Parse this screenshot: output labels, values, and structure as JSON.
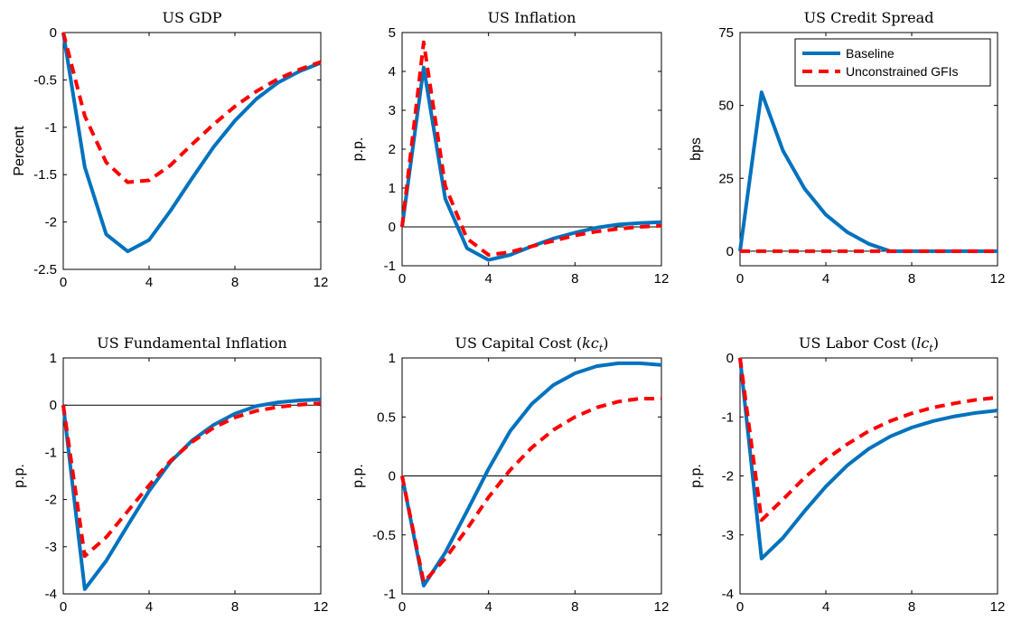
{
  "colors": {
    "baseline": "#0072BD",
    "unconstrained": "#FF0000",
    "axis": "#000000"
  },
  "legend": {
    "placement": "top-right",
    "entries": [
      {
        "label": "Baseline",
        "style": "solid",
        "color": "#0072BD"
      },
      {
        "label": "Unconstrained GFIs",
        "style": "dashed",
        "color": "#FF0000"
      }
    ]
  },
  "chart_data": [
    {
      "type": "line",
      "title": "US GDP",
      "title_main": "US GDP",
      "title_math": "",
      "ylabel": "Percent",
      "xlim": [
        0,
        12
      ],
      "ylim": [
        -2.5,
        0
      ],
      "xticks": [
        0,
        4,
        8,
        12
      ],
      "yticks": [
        -2.5,
        -2,
        -1.5,
        -1,
        -0.5,
        0
      ],
      "ytick_labels": [
        "-2.5",
        "-2",
        "-1.5",
        "-1",
        "-0.5",
        "0"
      ],
      "zero_line": false,
      "legend": false,
      "x": [
        0,
        1,
        2,
        3,
        4,
        5,
        6,
        7,
        8,
        9,
        10,
        11,
        12
      ],
      "series": [
        {
          "name": "Baseline",
          "values": [
            0,
            -1.42,
            -2.13,
            -2.31,
            -2.19,
            -1.88,
            -1.54,
            -1.21,
            -0.93,
            -0.7,
            -0.53,
            -0.41,
            -0.32
          ]
        },
        {
          "name": "Unconstrained GFIs",
          "values": [
            0,
            -0.88,
            -1.37,
            -1.58,
            -1.56,
            -1.4,
            -1.18,
            -0.97,
            -0.78,
            -0.62,
            -0.49,
            -0.39,
            -0.31
          ]
        }
      ]
    },
    {
      "type": "line",
      "title": "US Inflation",
      "title_main": "US Inflation",
      "title_math": "",
      "ylabel": "p.p.",
      "xlim": [
        0,
        12
      ],
      "ylim": [
        -1,
        5
      ],
      "xticks": [
        0,
        4,
        8,
        12
      ],
      "yticks": [
        -1,
        0,
        1,
        2,
        3,
        4,
        5
      ],
      "ytick_labels": [
        "-1",
        "0",
        "1",
        "2",
        "3",
        "4",
        "5"
      ],
      "zero_line": true,
      "legend": false,
      "x": [
        0,
        1,
        2,
        3,
        4,
        5,
        6,
        7,
        8,
        9,
        10,
        11,
        12
      ],
      "series": [
        {
          "name": "Baseline",
          "values": [
            0,
            4.1,
            0.72,
            -0.55,
            -0.85,
            -0.72,
            -0.5,
            -0.3,
            -0.15,
            -0.02,
            0.06,
            0.1,
            0.12
          ]
        },
        {
          "name": "Unconstrained GFIs",
          "values": [
            0,
            4.75,
            1.05,
            -0.3,
            -0.72,
            -0.65,
            -0.5,
            -0.36,
            -0.22,
            -0.12,
            -0.05,
            0.0,
            0.03
          ]
        }
      ]
    },
    {
      "type": "line",
      "title": "US Credit Spread",
      "title_main": "US Credit Spread",
      "title_math": "",
      "ylabel": "bps",
      "xlim": [
        0,
        12
      ],
      "ylim": [
        -5,
        75
      ],
      "xticks": [
        0,
        4,
        8,
        12
      ],
      "yticks": [
        0,
        25,
        50,
        75
      ],
      "ytick_labels": [
        "0",
        "25",
        "50",
        "75"
      ],
      "zero_line": true,
      "legend": true,
      "x": [
        0,
        1,
        2,
        3,
        4,
        5,
        6,
        7,
        8,
        9,
        10,
        11,
        12
      ],
      "series": [
        {
          "name": "Baseline",
          "values": [
            0,
            54.5,
            34.5,
            21.5,
            12.5,
            6.5,
            2.5,
            0,
            0,
            0,
            0,
            0,
            0
          ]
        },
        {
          "name": "Unconstrained GFIs",
          "values": [
            0,
            0,
            0,
            0,
            0,
            0,
            0,
            0,
            0,
            0,
            0,
            0,
            0
          ]
        }
      ]
    },
    {
      "type": "line",
      "title": "US Fundamental Inflation",
      "title_main": "US Fundamental Inflation",
      "title_math": "",
      "ylabel": "p.p.",
      "xlim": [
        0,
        12
      ],
      "ylim": [
        -4,
        1
      ],
      "xticks": [
        0,
        4,
        8,
        12
      ],
      "yticks": [
        -4,
        -3,
        -2,
        -1,
        0,
        1
      ],
      "ytick_labels": [
        "-4",
        "-3",
        "-2",
        "-1",
        "0",
        "1"
      ],
      "zero_line": true,
      "legend": false,
      "x": [
        0,
        1,
        2,
        3,
        4,
        5,
        6,
        7,
        8,
        9,
        10,
        11,
        12
      ],
      "series": [
        {
          "name": "Baseline",
          "values": [
            0,
            -3.9,
            -3.3,
            -2.55,
            -1.82,
            -1.2,
            -0.75,
            -0.42,
            -0.18,
            -0.02,
            0.06,
            0.1,
            0.12
          ]
        },
        {
          "name": "Unconstrained GFIs",
          "values": [
            0,
            -3.2,
            -2.8,
            -2.25,
            -1.7,
            -1.18,
            -0.78,
            -0.48,
            -0.26,
            -0.12,
            -0.04,
            0.01,
            0.04
          ]
        }
      ]
    },
    {
      "type": "line",
      "title": "US Capital Cost (kc_t)",
      "title_main": "US Capital Cost (",
      "title_math": "kc",
      "ylabel": "p.p.",
      "xlim": [
        0,
        12
      ],
      "ylim": [
        -1,
        1
      ],
      "xticks": [
        0,
        4,
        8,
        12
      ],
      "yticks": [
        -1,
        -0.5,
        0,
        0.5,
        1
      ],
      "ytick_labels": [
        "-1",
        "-0.5",
        "0",
        "0.5",
        "1"
      ],
      "zero_line": true,
      "legend": false,
      "x": [
        0,
        1,
        2,
        3,
        4,
        5,
        6,
        7,
        8,
        9,
        10,
        11,
        12
      ],
      "series": [
        {
          "name": "Baseline",
          "values": [
            0,
            -0.93,
            -0.65,
            -0.3,
            0.06,
            0.38,
            0.61,
            0.77,
            0.87,
            0.93,
            0.955,
            0.955,
            0.94
          ]
        },
        {
          "name": "Unconstrained GFIs",
          "values": [
            0,
            -0.9,
            -0.7,
            -0.45,
            -0.18,
            0.05,
            0.24,
            0.39,
            0.5,
            0.58,
            0.63,
            0.655,
            0.655
          ]
        }
      ]
    },
    {
      "type": "line",
      "title": "US Labor Cost (lc_t)",
      "title_main": "US Labor Cost (",
      "title_math": "lc",
      "ylabel": "p.p.",
      "xlim": [
        0,
        12
      ],
      "ylim": [
        -4,
        0
      ],
      "xticks": [
        0,
        4,
        8,
        12
      ],
      "yticks": [
        -4,
        -3,
        -2,
        -1,
        0
      ],
      "ytick_labels": [
        "-4",
        "-3",
        "-2",
        "-1",
        "0"
      ],
      "zero_line": false,
      "legend": false,
      "x": [
        0,
        1,
        2,
        3,
        4,
        5,
        6,
        7,
        8,
        9,
        10,
        11,
        12
      ],
      "series": [
        {
          "name": "Baseline",
          "values": [
            0,
            -3.4,
            -3.05,
            -2.6,
            -2.18,
            -1.82,
            -1.54,
            -1.33,
            -1.18,
            -1.07,
            -0.99,
            -0.93,
            -0.89
          ]
        },
        {
          "name": "Unconstrained GFIs",
          "values": [
            0,
            -2.75,
            -2.4,
            -2.03,
            -1.72,
            -1.46,
            -1.24,
            -1.07,
            -0.94,
            -0.84,
            -0.77,
            -0.71,
            -0.67
          ]
        }
      ]
    }
  ]
}
